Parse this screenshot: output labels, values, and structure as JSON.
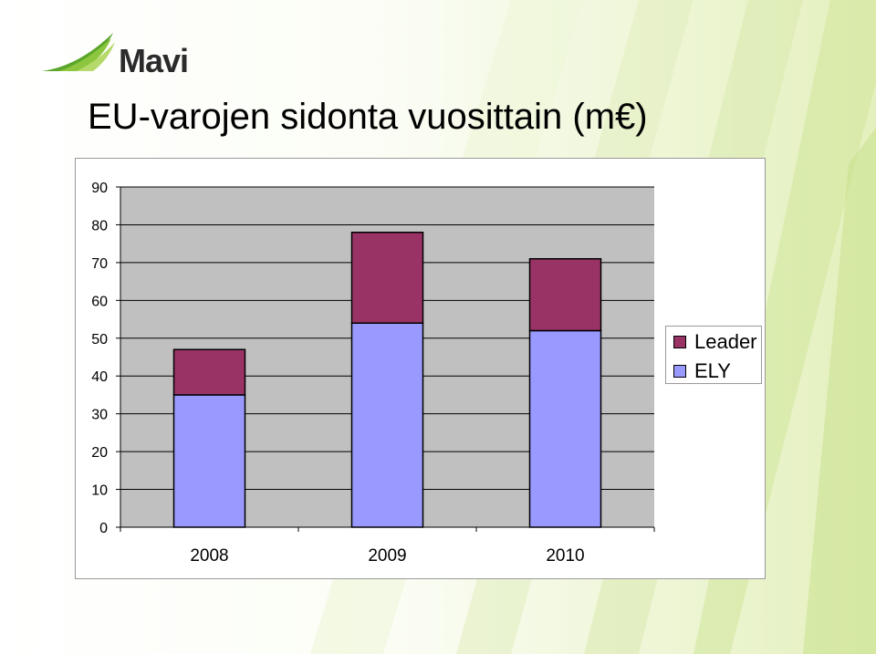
{
  "logo": {
    "text": "Mavi"
  },
  "title": "EU-varojen sidonta vuosittain (m€)",
  "colors": {
    "leader": "#993366",
    "ely": "#9999ff",
    "plot_bg": "#c0c0c0",
    "logo_green": "#5aa52a"
  },
  "chart_data": {
    "type": "bar",
    "stacked": true,
    "title": "",
    "xlabel": "",
    "ylabel": "",
    "categories": [
      "2008",
      "2009",
      "2010"
    ],
    "series": [
      {
        "name": "ELY",
        "values": [
          35,
          54,
          52
        ],
        "color": "#9999ff"
      },
      {
        "name": "Leader",
        "values": [
          12,
          24,
          19
        ],
        "color": "#993366"
      }
    ],
    "ylim": [
      0,
      90
    ],
    "yticks": [
      "0",
      "10",
      "20",
      "30",
      "40",
      "50",
      "60",
      "70",
      "80",
      "90"
    ],
    "grid": true,
    "legend_placement": "right"
  }
}
